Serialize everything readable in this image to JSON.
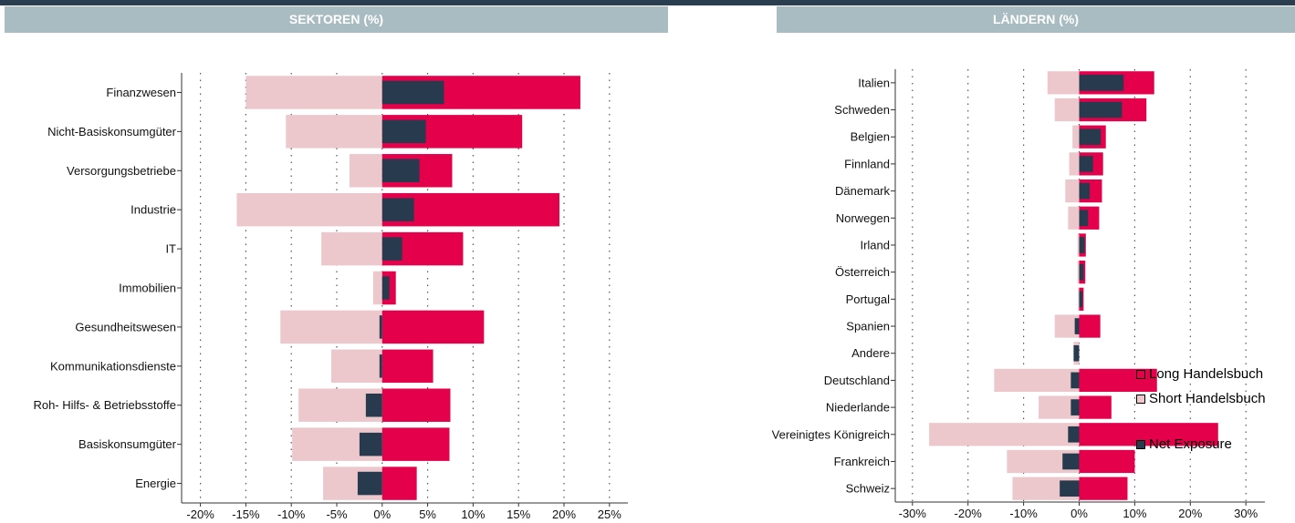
{
  "panels": {
    "left_title": "SEKTOREN (%)",
    "right_title": "LÄNDERN (%)"
  },
  "colors": {
    "long": "#e4004b",
    "short": "#ecc8cd",
    "net": "#283a4e",
    "header_bg": "#a9bcc2",
    "topbar": "#2b3e50"
  },
  "legend": {
    "long": "Long Handelsbuch",
    "short": "Short Handelsbuch",
    "net": "Net Exposure"
  },
  "chart_data": [
    {
      "type": "bar",
      "orientation": "horizontal",
      "title": "SEKTOREN (%)",
      "categories": [
        "Finanzwesen",
        "Nicht-Basiskonsumgüter",
        "Versorgungsbetriebe",
        "Industrie",
        "IT",
        "Immobilien",
        "Gesundheitswesen",
        "Kommunikationsdienste",
        "Roh-  Hilfs- & Betriebsstoffe",
        "Basiskonsumgüter",
        "Energie"
      ],
      "series": [
        {
          "name": "Long Handelsbuch",
          "values": [
            21.8,
            15.4,
            7.7,
            19.5,
            8.9,
            1.5,
            11.2,
            5.6,
            7.5,
            7.4,
            3.8
          ]
        },
        {
          "name": "Short Handelsbuch",
          "values": [
            -15.0,
            -10.6,
            -3.6,
            -16.0,
            -6.7,
            -1.0,
            -11.2,
            -5.6,
            -9.2,
            -9.9,
            -6.5
          ]
        },
        {
          "name": "Net Exposure",
          "values": [
            6.8,
            4.8,
            4.1,
            3.5,
            2.2,
            0.8,
            -0.3,
            -0.3,
            -1.8,
            -2.5,
            -2.7
          ]
        }
      ],
      "xlim": [
        -22,
        27
      ],
      "xticks": [
        -20,
        -15,
        -10,
        -5,
        0,
        5,
        10,
        15,
        20,
        25
      ],
      "xtick_labels": [
        "-20%",
        "-15%",
        "-10%",
        "-5%",
        "0%",
        "5%",
        "10%",
        "15%",
        "20%",
        "25%"
      ],
      "grid": "vertical-dotted"
    },
    {
      "type": "bar",
      "orientation": "horizontal",
      "title": "LÄNDERN (%)",
      "categories": [
        "Italien",
        "Schweden",
        "Belgien",
        "Finnland",
        "Dänemark",
        "Norwegen",
        "Irland",
        "Österreich",
        "Portugal",
        "Spanien",
        "Andere",
        "Deutschland",
        "Niederlande",
        "Vereinigtes Königreich",
        "Frankreich",
        "Schweiz"
      ],
      "series": [
        {
          "name": "Long Handelsbuch",
          "values": [
            13.5,
            12.1,
            4.8,
            4.3,
            4.1,
            3.6,
            1.2,
            1.1,
            0.8,
            3.8,
            0,
            14.0,
            5.8,
            25.0,
            10.0,
            8.7
          ]
        },
        {
          "name": "Short Handelsbuch",
          "values": [
            -5.7,
            -4.4,
            -1.2,
            -1.8,
            -2.5,
            -2.0,
            -0.3,
            -0.3,
            -0.2,
            -4.4,
            -1.0,
            -15.3,
            -7.3,
            -27.0,
            -13.0,
            -12.0
          ]
        },
        {
          "name": "Net Exposure",
          "values": [
            8.0,
            7.7,
            3.9,
            2.5,
            1.9,
            1.6,
            1.0,
            0.8,
            0.6,
            -0.8,
            -1.0,
            -1.5,
            -1.5,
            -2.0,
            -3.0,
            -3.5
          ]
        }
      ],
      "xlim": [
        -32,
        32
      ],
      "xticks": [
        -30,
        -20,
        -10,
        0,
        10,
        20,
        30
      ],
      "xtick_labels": [
        "-30%",
        "-20%",
        "-10%",
        "0%",
        "10%",
        "20%",
        "30%"
      ],
      "grid": "vertical-dotted",
      "legend_position": "right"
    }
  ]
}
